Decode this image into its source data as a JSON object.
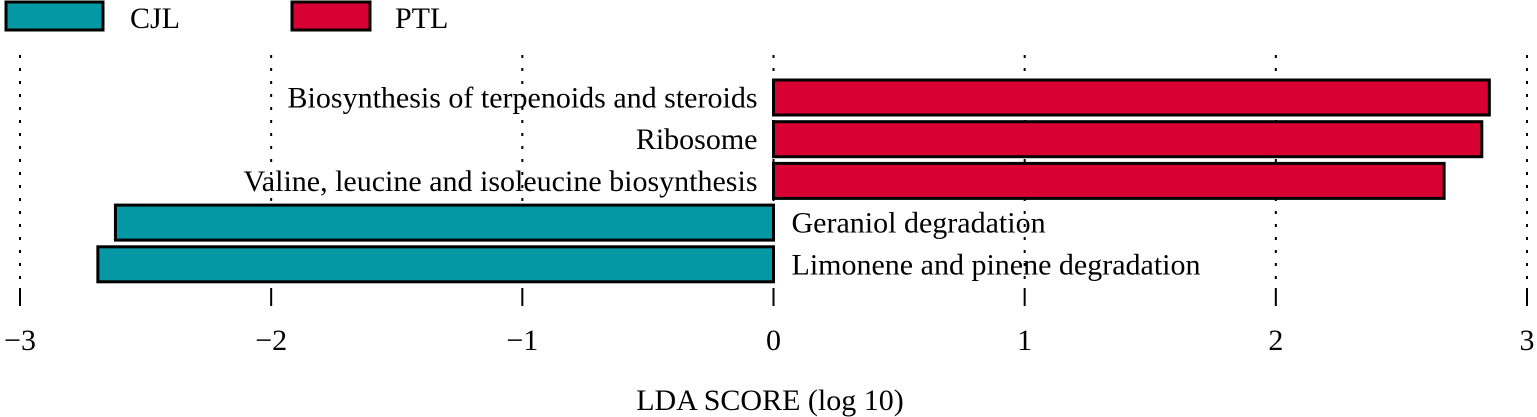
{
  "chart_data": {
    "type": "bar",
    "orientation": "horizontal",
    "xlabel": "LDA SCORE (log 10)",
    "xlim": [
      -3,
      3
    ],
    "xticks": [
      -3,
      -2,
      -1,
      0,
      1,
      2,
      3
    ],
    "xtick_labels": [
      "−3",
      "−2",
      "−1",
      "0",
      "1",
      "2",
      "3"
    ],
    "grid": "vertical dotted",
    "legend": {
      "placement": "top-left",
      "entries": [
        {
          "name": "CJL",
          "color": "#0497a4"
        },
        {
          "name": "PTL",
          "color": "#d80032"
        }
      ]
    },
    "categories": [
      "Biosynthesis of terpenoids and steroids",
      "Ribosome",
      "Valine, leucine and isoleucine biosynthesis",
      "Geraniol degradation",
      "Limonene and pinene degradation"
    ],
    "values": [
      2.85,
      2.82,
      2.67,
      -2.62,
      -2.69
    ],
    "groups": [
      "PTL",
      "PTL",
      "PTL",
      "CJL",
      "CJL"
    ]
  }
}
